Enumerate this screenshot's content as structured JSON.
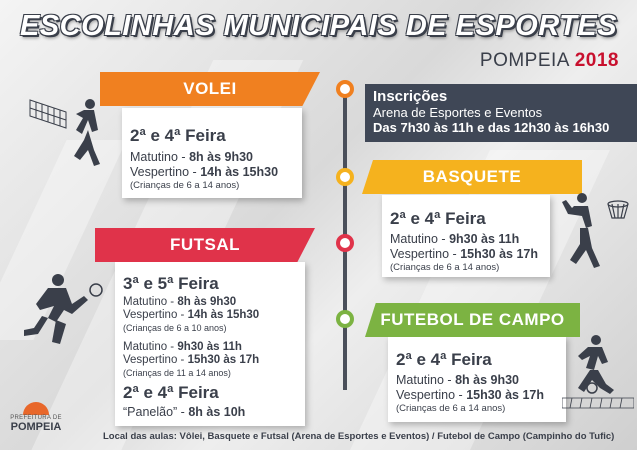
{
  "header": {
    "title": "ESCOLINHAS MUNICIPAIS DE ESPORTES",
    "city": "POMPEIA",
    "year": "2018"
  },
  "colors": {
    "volei": "#f08020",
    "basquete": "#f5b21e",
    "futsal": "#e0334a",
    "futebol": "#7cb342",
    "dark": "#3a3f4a"
  },
  "inscricoes": {
    "heading": "Inscrições",
    "place": "Arena de Esportes e Eventos",
    "hours": "Das 7h30 às 11h e das 12h30 às 16h30"
  },
  "volei": {
    "name": "VOLEI",
    "days": "2ª e 4ª Feira",
    "sessions": [
      {
        "period": "Matutino",
        "time": "8h às 9h30"
      },
      {
        "period": "Vespertino",
        "time": "14h às 15h30"
      }
    ],
    "ages": "(Crianças de 6 a 14 anos)"
  },
  "basquete": {
    "name": "BASQUETE",
    "days": "2ª e 4ª Feira",
    "sessions": [
      {
        "period": "Matutino",
        "time": "9h30 às 11h"
      },
      {
        "period": "Vespertino",
        "time": "15h30 às 17h"
      }
    ],
    "ages": "(Crianças de 6 a 14 anos)"
  },
  "futsal": {
    "name": "FUTSAL",
    "days1": "3ª e 5ª Feira",
    "group1": [
      {
        "period": "Matutino",
        "time": "8h às 9h30"
      },
      {
        "period": "Vespertino",
        "time": "14h às 15h30"
      }
    ],
    "ages1": "(Crianças de 6 a 10 anos)",
    "group2": [
      {
        "period": "Matutino",
        "time": "9h30 às 11h"
      },
      {
        "period": "Vespertino",
        "time": "15h30 às 17h"
      }
    ],
    "ages2": "(Crianças de 11 a 14 anos)",
    "days2": "2ª e 4ª Feira",
    "panelao_label": "“Panelão”",
    "panelao_time": "8h às 10h"
  },
  "futebol": {
    "name": "FUTEBOL DE CAMPO",
    "days": "2ª e 4ª Feira",
    "sessions": [
      {
        "period": "Matutino",
        "time": "8h às 9h30"
      },
      {
        "period": "Vespertino",
        "time": "15h30 às 17h"
      }
    ],
    "ages": "(Crianças de 6 a 14 anos)"
  },
  "footer": {
    "text": "Local das aulas: Vôlei, Basquete e Futsal (Arena de Esportes e Eventos) / Futebol de Campo (Campinho do Tufic)"
  },
  "logo": {
    "small": "PREFEITURA DE",
    "big": "POMPEIA"
  },
  "icons": [
    "volleyball-net-icon",
    "volleyball-player-icon",
    "basketball-player-icon",
    "futsal-player-icon",
    "soccer-goal-player-icon",
    "sun-logo-icon"
  ]
}
